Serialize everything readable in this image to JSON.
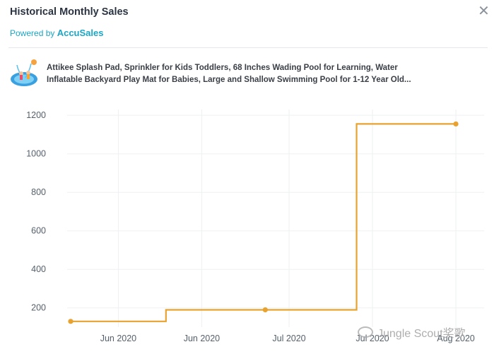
{
  "header": {
    "title": "Historical Monthly Sales",
    "powered_by_prefix": "Powered by ",
    "powered_by_brand": "AccuSales",
    "close_glyph": "✕"
  },
  "product": {
    "title_line1": "Attikee Splash Pad, Sprinkler for Kids Toddlers, 68 Inches Wading Pool for Learning, Water",
    "title_line2": "Inflatable Backyard Play Mat for Babies, Large and Shallow Swimming Pool for 1-12 Year Old...",
    "thumb_icon": "splash-pad-product-icon"
  },
  "watermark": {
    "text": "Jungle Scout奖歌"
  },
  "colors": {
    "line": "#e8a22f",
    "grid": "#eef0f2",
    "axis_text": "#55606c"
  },
  "chart_data": {
    "type": "line",
    "line_shape": "step",
    "ylim": [
      100,
      1230
    ],
    "yticks": [
      200,
      400,
      600,
      800,
      1000,
      1200
    ],
    "xlim": [
      0,
      100
    ],
    "xticks": [
      {
        "x": 12,
        "label": "Jun 2020"
      },
      {
        "x": 33,
        "label": "Jun 2020"
      },
      {
        "x": 55,
        "label": "Jul 2020"
      },
      {
        "x": 76,
        "label": "Jul 2020"
      },
      {
        "x": 97,
        "label": "Aug 2020"
      }
    ],
    "series": [
      {
        "points": [
          {
            "x": 0,
            "y": 130
          },
          {
            "x": 24,
            "y": 130
          },
          {
            "x": 24,
            "y": 190
          },
          {
            "x": 49,
            "y": 190
          },
          {
            "x": 72,
            "y": 190
          },
          {
            "x": 72,
            "y": 1155
          },
          {
            "x": 97,
            "y": 1155
          }
        ],
        "markers": [
          {
            "x": 0,
            "y": 130
          },
          {
            "x": 49,
            "y": 190
          },
          {
            "x": 97,
            "y": 1155
          }
        ]
      }
    ]
  }
}
